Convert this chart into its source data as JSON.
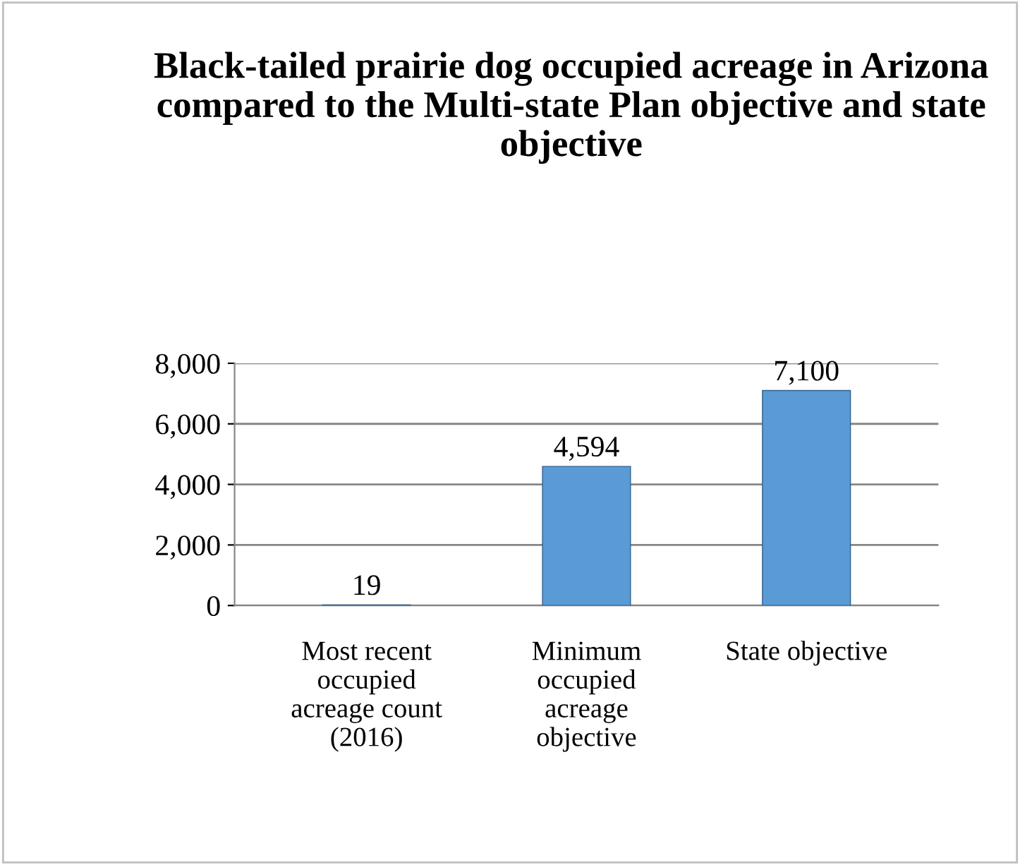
{
  "chart_data": {
    "type": "bar",
    "title": "Black-tailed prairie dog occupied acreage in Arizona compared to the Multi-state Plan objective and state objective",
    "categories": [
      "Most recent\noccupied\nacreage count\n(2016)",
      "Minimum\noccupied\nacreage\nobjective",
      "State objective"
    ],
    "values": [
      19,
      4594,
      7100
    ],
    "value_labels": [
      "19",
      "4,594",
      "7,100"
    ],
    "color": "#5b9bd5",
    "ylim": [
      0,
      8000
    ],
    "yticks": [
      {
        "value": 0,
        "label": "0"
      },
      {
        "value": 2000,
        "label": "2,000"
      },
      {
        "value": 4000,
        "label": "4,000"
      },
      {
        "value": 6000,
        "label": "6,000"
      },
      {
        "value": 8000,
        "label": "8,000"
      }
    ],
    "grid": "y",
    "legend": false
  }
}
